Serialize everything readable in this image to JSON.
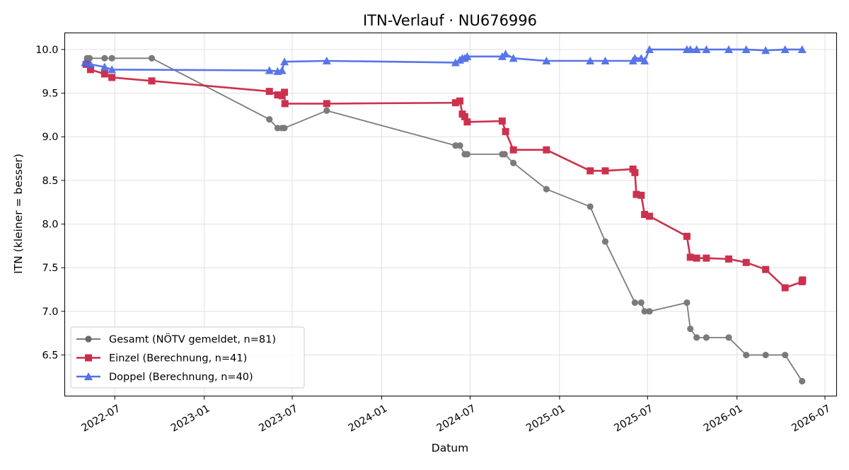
{
  "chart_data": {
    "type": "line",
    "title": "ITN-Verlauf · NU676996",
    "xlabel": "Datum",
    "ylabel": "ITN  (kleiner = besser)",
    "x_type": "date",
    "xlim": [
      "2022-03-20",
      "2026-07-25"
    ],
    "ylim": [
      6.03,
      10.19
    ],
    "yticks": [
      6.5,
      7.0,
      7.5,
      8.0,
      8.5,
      9.0,
      9.5,
      10.0
    ],
    "ytick_labels": [
      "6.5",
      "7.0",
      "7.5",
      "8.0",
      "8.5",
      "9.0",
      "9.5",
      "10.0"
    ],
    "xticks": [
      "2022-07-01",
      "2023-01-01",
      "2023-07-01",
      "2024-01-01",
      "2024-07-01",
      "2025-01-01",
      "2025-07-01",
      "2026-01-01",
      "2026-07-01"
    ],
    "xtick_labels": [
      "2022-07",
      "2023-01",
      "2023-07",
      "2024-01",
      "2024-07",
      "2025-01",
      "2025-07",
      "2026-01",
      "2026-07"
    ],
    "grid": true,
    "legend_position": "lower-left",
    "series": [
      {
        "name": "Gesamt (NÖTV gemeldet, n=81)",
        "color": "#444444",
        "marker": "circle",
        "x": [
          "2022-05-05",
          "2022-05-10",
          "2022-06-10",
          "2022-06-25",
          "2022-09-15",
          "2023-05-15",
          "2023-06-01",
          "2023-06-10",
          "2023-06-15",
          "2023-09-10",
          "2024-06-01",
          "2024-06-10",
          "2024-06-20",
          "2024-06-25",
          "2024-09-05",
          "2024-09-10",
          "2024-09-28",
          "2024-12-05",
          "2025-03-05",
          "2025-04-05",
          "2025-06-05",
          "2025-06-18",
          "2025-06-25",
          "2025-07-05",
          "2025-09-20",
          "2025-09-27",
          "2025-10-10",
          "2025-10-30",
          "2025-12-15",
          "2026-01-20",
          "2026-03-01",
          "2026-04-10",
          "2026-05-15"
        ],
        "y": [
          9.9,
          9.9,
          9.9,
          9.9,
          9.9,
          9.2,
          9.1,
          9.1,
          9.1,
          9.3,
          8.9,
          8.9,
          8.8,
          8.8,
          8.8,
          8.8,
          8.7,
          8.4,
          8.2,
          7.8,
          7.1,
          7.1,
          7.0,
          7.0,
          7.1,
          6.8,
          6.7,
          6.7,
          6.7,
          6.5,
          6.5,
          6.5,
          6.2
        ]
      },
      {
        "name": "Einzel (Berechnung, n=41)",
        "color": "#c8203f",
        "marker": "square",
        "x": [
          "2022-05-03",
          "2022-05-12",
          "2022-06-10",
          "2022-06-25",
          "2022-09-15",
          "2023-05-15",
          "2023-06-01",
          "2023-06-10",
          "2023-06-15",
          "2023-06-16",
          "2023-09-10",
          "2024-06-01",
          "2024-06-10",
          "2024-06-15",
          "2024-06-20",
          "2024-06-25",
          "2024-09-05",
          "2024-09-12",
          "2024-09-28",
          "2024-12-05",
          "2025-03-05",
          "2025-04-05",
          "2025-06-01",
          "2025-06-05",
          "2025-06-08",
          "2025-06-18",
          "2025-06-25",
          "2025-07-05",
          "2025-09-20",
          "2025-09-27",
          "2025-10-10",
          "2025-10-30",
          "2025-12-15",
          "2026-01-20",
          "2026-03-01",
          "2026-04-10",
          "2026-05-15",
          "2026-05-16"
        ],
        "y": [
          9.83,
          9.77,
          9.72,
          9.68,
          9.64,
          9.52,
          9.48,
          9.47,
          9.51,
          9.38,
          9.38,
          9.39,
          9.41,
          9.26,
          9.23,
          9.17,
          9.18,
          9.06,
          8.85,
          8.85,
          8.61,
          8.61,
          8.63,
          8.59,
          8.34,
          8.33,
          8.11,
          8.09,
          7.86,
          7.62,
          7.61,
          7.61,
          7.6,
          7.56,
          7.48,
          7.27,
          7.34,
          7.36
        ]
      },
      {
        "name": "Doppel (Berechnung, n=40)",
        "color": "#4a6ae8",
        "marker": "triangle",
        "x": [
          "2022-05-01",
          "2022-05-12",
          "2022-06-10",
          "2022-06-25",
          "2023-05-15",
          "2023-06-01",
          "2023-06-10",
          "2023-06-15",
          "2023-09-10",
          "2024-06-01",
          "2024-06-10",
          "2024-06-15",
          "2024-06-20",
          "2024-06-25",
          "2024-09-05",
          "2024-09-12",
          "2024-09-28",
          "2024-12-05",
          "2025-03-05",
          "2025-04-05",
          "2025-06-01",
          "2025-06-05",
          "2025-06-18",
          "2025-06-25",
          "2025-07-05",
          "2025-09-20",
          "2025-09-27",
          "2025-10-10",
          "2025-10-30",
          "2025-12-15",
          "2026-01-20",
          "2026-03-01",
          "2026-04-10",
          "2026-05-15"
        ],
        "y": [
          9.85,
          9.83,
          9.8,
          9.77,
          9.76,
          9.75,
          9.76,
          9.86,
          9.87,
          9.85,
          9.88,
          9.9,
          9.9,
          9.92,
          9.92,
          9.95,
          9.9,
          9.87,
          9.87,
          9.87,
          9.87,
          9.9,
          9.9,
          9.87,
          10.0,
          10.0,
          10.0,
          10.0,
          10.0,
          10.0,
          10.0,
          9.99,
          10.0,
          10.0
        ]
      }
    ]
  }
}
